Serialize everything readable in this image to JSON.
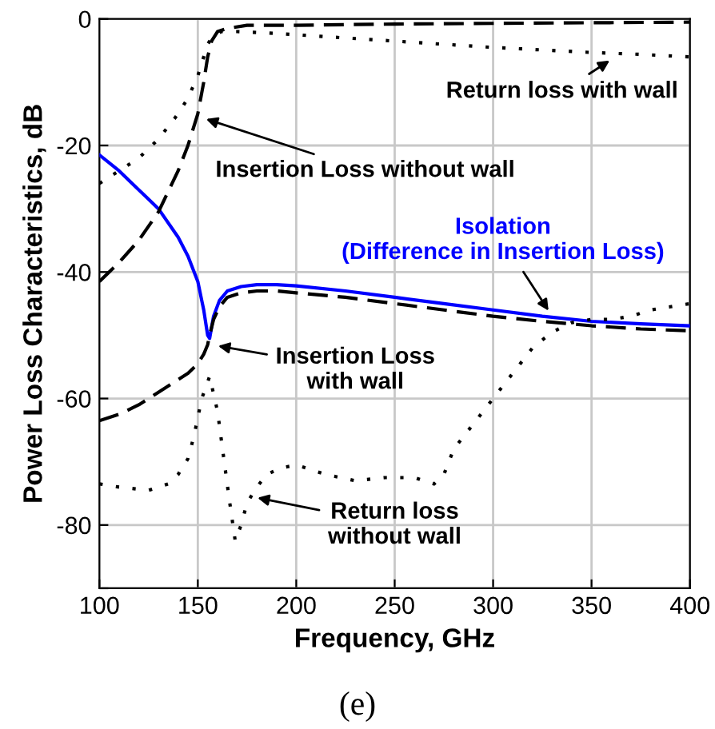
{
  "chart_data": {
    "type": "line",
    "xlabel": "Frequency, GHz",
    "ylabel": "Power Loss Characteristics, dB",
    "xlim": [
      100,
      400
    ],
    "ylim": [
      -90,
      0
    ],
    "xticks": [
      100,
      150,
      200,
      250,
      300,
      350,
      400
    ],
    "yticks": [
      {
        "value": -90,
        "label": null
      },
      -80,
      -60,
      -40,
      -20,
      0
    ],
    "grid": true,
    "legend": false,
    "series": [
      {
        "color": "#0000ff",
        "line_style": "solid",
        "x": [
          100,
          110,
          120,
          130,
          140,
          145,
          150,
          153,
          155,
          156,
          158,
          161,
          165,
          172,
          180,
          190,
          200,
          225,
          250,
          275,
          300,
          325,
          350,
          375,
          400
        ],
        "values": [
          -21.5,
          -24,
          -27,
          -30,
          -34.5,
          -37.5,
          -41.5,
          -46,
          -50,
          -50.5,
          -47,
          -44.5,
          -43,
          -42.3,
          -42,
          -42,
          -42.2,
          -43,
          -44,
          -45,
          -46,
          -47,
          -47.8,
          -48.2,
          -48.5
        ]
      },
      {
        "color": "#000000",
        "line_style": "dashed",
        "x": [
          100,
          110,
          120,
          130,
          140,
          145,
          150,
          153,
          155,
          156,
          158,
          161,
          165,
          172,
          180,
          190,
          200,
          225,
          250,
          275,
          300,
          325,
          350,
          375,
          400
        ],
        "values": [
          -63.5,
          -62.5,
          -61,
          -59,
          -57,
          -56,
          -54.5,
          -53,
          -51.5,
          -50,
          -47.5,
          -45.5,
          -44,
          -43.3,
          -43,
          -43,
          -43.3,
          -44,
          -45,
          -46,
          -47,
          -47.8,
          -48.5,
          -49,
          -49.3
        ]
      },
      {
        "color": "#000000",
        "line_style": "dashed",
        "x": [
          100,
          110,
          120,
          130,
          140,
          145,
          150,
          153,
          155,
          157,
          160,
          165,
          175,
          200,
          250,
          300,
          350,
          400
        ],
        "values": [
          -41.5,
          -38.5,
          -35,
          -30.5,
          -24,
          -20,
          -15,
          -10,
          -6,
          -3.5,
          -2,
          -1.5,
          -1,
          -1,
          -0.8,
          -0.7,
          -0.6,
          -0.5
        ]
      },
      {
        "color": "#000000",
        "line_style": "dotted",
        "x": [
          100,
          110,
          120,
          130,
          140,
          145,
          150,
          153,
          155,
          158,
          162,
          170,
          185,
          200,
          250,
          300,
          350,
          375,
          400
        ],
        "values": [
          -26,
          -24,
          -22,
          -19,
          -15,
          -12.5,
          -9,
          -6,
          -4,
          -2.5,
          -2,
          -2,
          -2.2,
          -2.5,
          -3.5,
          -4.5,
          -5.3,
          -5.6,
          -6
        ]
      },
      {
        "color": "#000000",
        "line_style": "dotted",
        "x": [
          100,
          110,
          125,
          135,
          140,
          145,
          148,
          152,
          156,
          160,
          163,
          166,
          169,
          172,
          175,
          180,
          185,
          192,
          200,
          215,
          230,
          245,
          260,
          270,
          275,
          280,
          290,
          300,
          310,
          320,
          330,
          340,
          350,
          360,
          370,
          380,
          390,
          400
        ],
        "values": [
          -73.5,
          -74,
          -74.5,
          -73.5,
          -72,
          -69.5,
          -66,
          -60,
          -56.5,
          -62,
          -69,
          -76,
          -82.5,
          -80,
          -76.5,
          -74,
          -72,
          -71,
          -70.5,
          -72,
          -73,
          -72.5,
          -72.5,
          -73.5,
          -72,
          -68,
          -64,
          -60,
          -56,
          -52,
          -49.5,
          -48,
          -47.5,
          -47.5,
          -47,
          -46,
          -45.5,
          -45
        ]
      }
    ],
    "annotations": [
      {
        "text": "Return loss with wall",
        "x": 362,
        "y": -6
      },
      {
        "text": "Insertion Loss without wall",
        "x": 151,
        "y": -15.5
      },
      {
        "text": "Isolation\n(Difference in Insertion Loss)",
        "x": 330,
        "y": -47
      },
      {
        "text": "Insertion Loss\nwith wall",
        "x": 157,
        "y": -51.5
      },
      {
        "text": "Return loss\nwithout wall",
        "x": 177,
        "y": -75.5
      },
      "(e)"
    ]
  }
}
